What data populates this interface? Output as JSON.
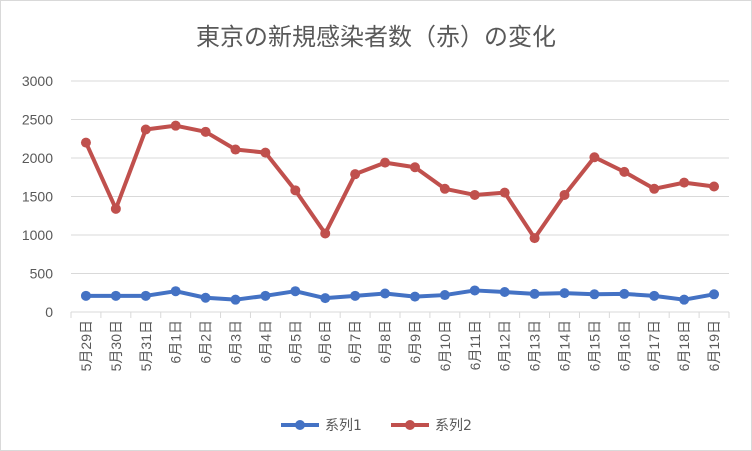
{
  "chart_data": {
    "type": "line",
    "title": "東京の新規感染者数（赤）の変化",
    "categories": [
      "5月29日",
      "5月30日",
      "5月31日",
      "6月1日",
      "6月2日",
      "6月3日",
      "6月4日",
      "6月5日",
      "6月6日",
      "6月7日",
      "6月8日",
      "6月9日",
      "6月10日",
      "6月11日",
      "6月12日",
      "6月13日",
      "6月14日",
      "6月15日",
      "6月16日",
      "6月17日",
      "6月18日",
      "6月19日"
    ],
    "ylim": [
      0,
      3000
    ],
    "yticks": [
      "0",
      "500",
      "1000",
      "1500",
      "2000",
      "2500",
      "3000"
    ],
    "grid": true,
    "legend_position": "bottom",
    "series": [
      {
        "name": "系列1",
        "color": "#4472c4",
        "values": [
          210,
          210,
          210,
          270,
          185,
          160,
          210,
          270,
          180,
          210,
          240,
          200,
          220,
          280,
          260,
          235,
          245,
          230,
          235,
          210,
          160,
          230
        ]
      },
      {
        "name": "系列2",
        "color": "#c0504d",
        "values": [
          2200,
          1340,
          2370,
          2420,
          2340,
          2110,
          2070,
          1580,
          1020,
          1790,
          1940,
          1880,
          1600,
          1520,
          1550,
          960,
          1520,
          2010,
          1820,
          1600,
          1680,
          1630
        ]
      }
    ]
  }
}
